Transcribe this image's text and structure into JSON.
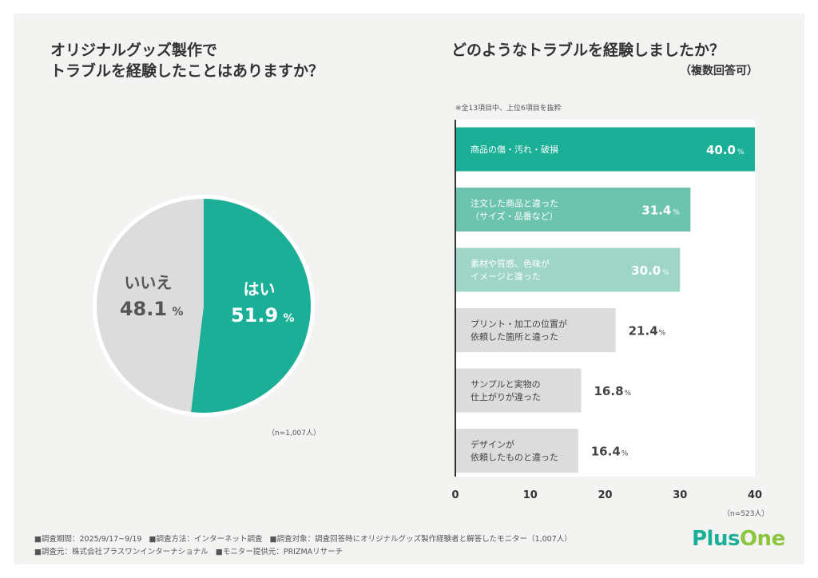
{
  "left": {
    "title": "オリジナルグッズ製作で\nトラブルを経験したことはありますか？",
    "n_label": "（n=1,007人）"
  },
  "right": {
    "title": "どのようなトラブルを経験しましたか？",
    "subtitle": "（複数回答可）",
    "note": "※全13項目中、上位6項目を抜粋",
    "n_label": "（n=523人）"
  },
  "chart_data": [
    {
      "type": "pie",
      "slices": [
        {
          "label": "はい",
          "value": 51.9,
          "color": "#1aaf96"
        },
        {
          "label": "いいえ",
          "value": 48.1,
          "color": "#dcdcdc"
        }
      ],
      "unit": "%"
    },
    {
      "type": "bar",
      "orientation": "horizontal",
      "categories": [
        [
          "商品の傷・汚れ・破損"
        ],
        [
          "注文した商品と違った",
          "（サイズ・品番など）"
        ],
        [
          "素材や質感、色味が",
          "イメージと違った"
        ],
        [
          "プリント・加工の位置が",
          "依頼した箇所と違った"
        ],
        [
          "サンプルと実物の",
          "仕上がりが違った"
        ],
        [
          "デザインが",
          "依頼したものと違った"
        ]
      ],
      "values": [
        40.0,
        31.4,
        30.0,
        21.4,
        16.8,
        16.4
      ],
      "colors": [
        "#1aaf96",
        "#6cc4ae",
        "#9ed5c6",
        "#dcdcdc",
        "#dcdcdc",
        "#dcdcdc"
      ],
      "unit": "%",
      "xlim": [
        0,
        40
      ],
      "xticks": [
        "0",
        "10",
        "20",
        "30",
        "40"
      ]
    }
  ],
  "footer": {
    "line1": [
      "■調査期間：2025/9/17~9/19",
      "■調査方法：インターネット調査",
      "■調査対象：調査回答時にオリジナルグッズ製作経験者と解答したモニター（1,007人）"
    ],
    "line2": [
      "■調査元：株式会社プラスワンインターナショナル",
      "■モニター提供元：PRIZMAリサーチ"
    ]
  },
  "logo": {
    "part1": "Plus",
    "part2": "One",
    "color1": "#1aaf96",
    "color2": "#8cc63f"
  }
}
